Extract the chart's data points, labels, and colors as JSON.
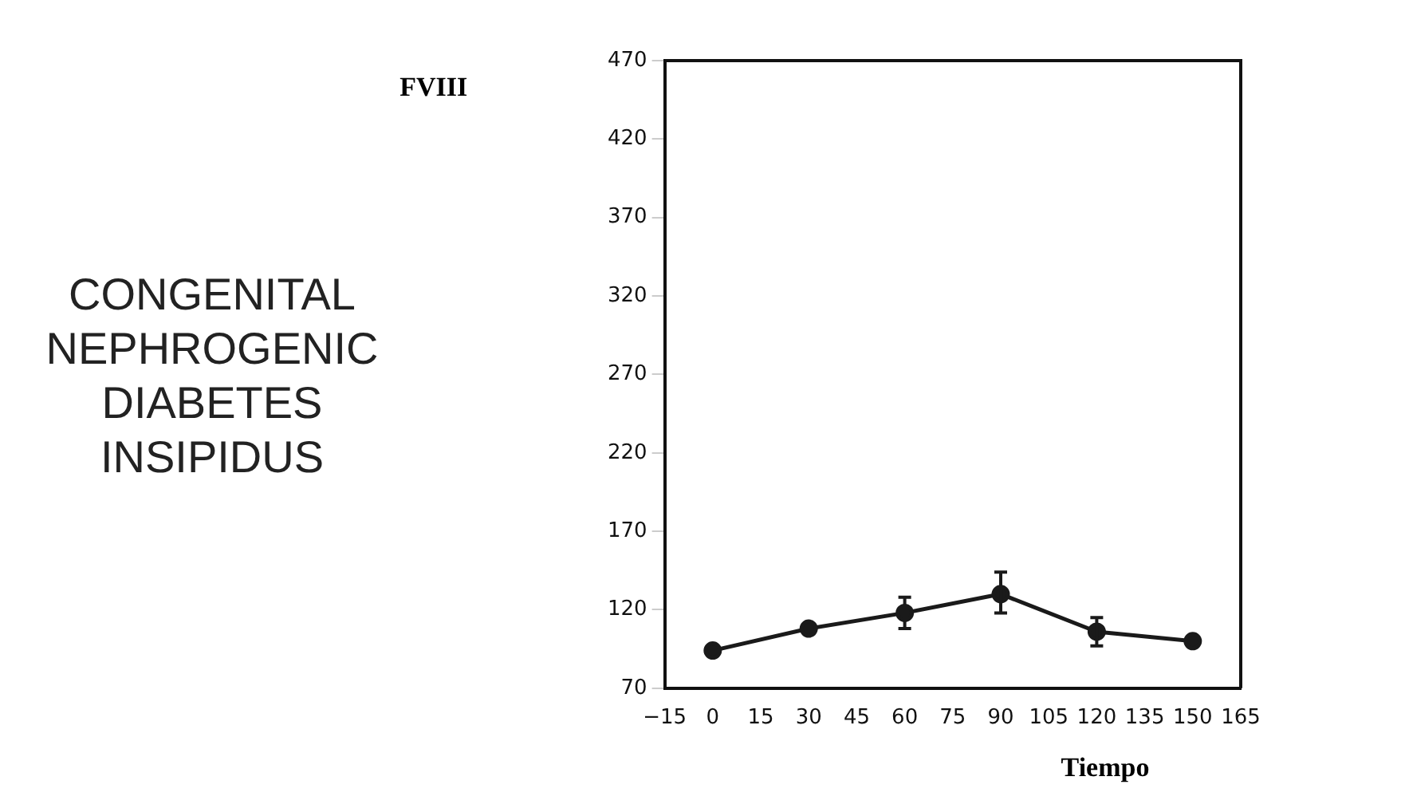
{
  "chart_data": {
    "type": "line",
    "title": "CONGENITAL\nNEPHROGENIC\nDIABETES\nINSIPIDUS",
    "annotations": [
      "FVIII"
    ],
    "xlabel": "Tiempo",
    "x": [
      0,
      30,
      60,
      90,
      120,
      150
    ],
    "series": [
      {
        "color": "#1a1a1a",
        "values": [
          94,
          108,
          118,
          130,
          106,
          100
        ],
        "errors": [
          null,
          null,
          [
            108,
            128
          ],
          [
            118,
            144
          ],
          [
            97,
            115
          ],
          null
        ]
      }
    ],
    "xlim": [
      -15,
      165
    ],
    "xticks": [
      -15,
      0,
      15,
      30,
      45,
      60,
      75,
      90,
      105,
      120,
      135,
      150,
      165
    ],
    "ylim": [
      70,
      470
    ],
    "yticks": [
      70,
      120,
      170,
      220,
      270,
      320,
      370,
      420,
      470
    ],
    "grid": false,
    "legend": false,
    "marker": "circle",
    "line_style": "solid"
  }
}
